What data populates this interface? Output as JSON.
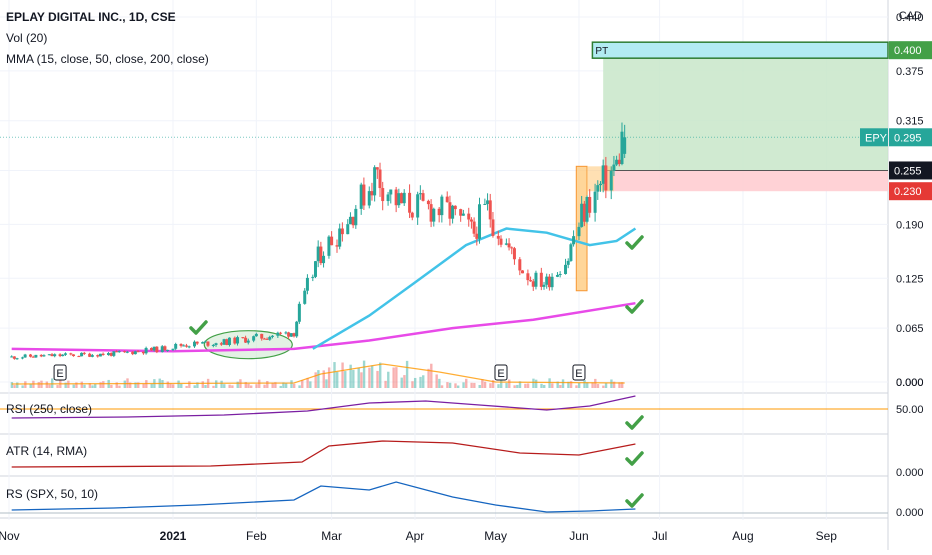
{
  "legend": {
    "title": "EPLAY DIGITAL INC., 1D, CSE",
    "volume": "Vol (20)",
    "mma": "MMA (15, close, 50, close, 200, close)"
  },
  "currency": "CAD",
  "panes": {
    "rsi": "RSI (250, close)",
    "atr": "ATR (14, RMA)",
    "rs": "RS (SPX, 50, 10)"
  },
  "colors": {
    "up": "#26a69a",
    "down": "#ef5350",
    "ma50": "#42c3e8",
    "ma200": "#e84ae8",
    "rsi": "#7b1fa2",
    "atr": "#b71c1c",
    "rs": "#1565c0",
    "volume_avg": "#ff9800",
    "target_zone": "#c8e6c9",
    "stop_zone": "#ffcdd2",
    "entry_box": "#ffcc80",
    "check": "#43a047"
  },
  "chart_data": {
    "type": "candlestick",
    "title": "EPLAY DIGITAL INC., 1D, CSE",
    "x_ticks": [
      "Nov",
      "2021",
      "Feb",
      "Mar",
      "Apr",
      "May",
      "Jun",
      "Jul",
      "Aug",
      "Sep"
    ],
    "y_ticks": [
      "0.440",
      "0.375",
      "0.315",
      "0.255",
      "0.190",
      "0.125",
      "0.065",
      "0.000"
    ],
    "y_range": [
      0.0,
      0.45
    ],
    "grid": true,
    "price_labels": {
      "target": "0.400",
      "last": "0.295",
      "entry": "0.255",
      "stop": "0.230"
    },
    "price_values": {
      "target": 0.4,
      "last": 0.295,
      "entry": 0.255,
      "stop": 0.23
    },
    "symbol_tag": "EPY",
    "target_tag": "PT",
    "earnings_marker": "E",
    "close_series": [
      {
        "date": "2020-11-02",
        "close": 0.03
      },
      {
        "date": "2020-11-20",
        "close": 0.032
      },
      {
        "date": "2020-12-10",
        "close": 0.034
      },
      {
        "date": "2020-12-28",
        "close": 0.04
      },
      {
        "date": "2021-01-05",
        "close": 0.045
      },
      {
        "date": "2021-01-20",
        "close": 0.048
      },
      {
        "date": "2021-02-05",
        "close": 0.055
      },
      {
        "date": "2021-02-15",
        "close": 0.06
      },
      {
        "date": "2021-02-24",
        "close": 0.15
      },
      {
        "date": "2021-03-08",
        "close": 0.2
      },
      {
        "date": "2021-03-18",
        "close": 0.25
      },
      {
        "date": "2021-03-26",
        "close": 0.215
      },
      {
        "date": "2021-04-06",
        "close": 0.21
      },
      {
        "date": "2021-04-14",
        "close": 0.205
      },
      {
        "date": "2021-04-23",
        "close": 0.18
      },
      {
        "date": "2021-04-28",
        "close": 0.21
      },
      {
        "date": "2021-05-06",
        "close": 0.16
      },
      {
        "date": "2021-05-14",
        "close": 0.125
      },
      {
        "date": "2021-05-20",
        "close": 0.12
      },
      {
        "date": "2021-05-28",
        "close": 0.15
      },
      {
        "date": "2021-06-03",
        "close": 0.205
      },
      {
        "date": "2021-06-09",
        "close": 0.235
      },
      {
        "date": "2021-06-15",
        "close": 0.26
      },
      {
        "date": "2021-06-18",
        "close": 0.295
      }
    ],
    "ma50_series": [
      {
        "date": "2021-02-22",
        "value": 0.04
      },
      {
        "date": "2021-03-15",
        "value": 0.08
      },
      {
        "date": "2021-04-01",
        "value": 0.12
      },
      {
        "date": "2021-04-20",
        "value": 0.165
      },
      {
        "date": "2021-05-05",
        "value": 0.185
      },
      {
        "date": "2021-05-20",
        "value": 0.18
      },
      {
        "date": "2021-06-05",
        "value": 0.165
      },
      {
        "date": "2021-06-15",
        "value": 0.17
      },
      {
        "date": "2021-06-22",
        "value": 0.185
      }
    ],
    "ma200_series": [
      {
        "date": "2020-11-02",
        "value": 0.04
      },
      {
        "date": "2021-01-01",
        "value": 0.037
      },
      {
        "date": "2021-02-15",
        "value": 0.04
      },
      {
        "date": "2021-03-15",
        "value": 0.05
      },
      {
        "date": "2021-04-15",
        "value": 0.065
      },
      {
        "date": "2021-05-15",
        "value": 0.075
      },
      {
        "date": "2021-06-22",
        "value": 0.095
      }
    ],
    "rsi_level": "50.00",
    "atr_level": "0.000",
    "rs_level": "0.000",
    "volume_level": "0.000"
  }
}
